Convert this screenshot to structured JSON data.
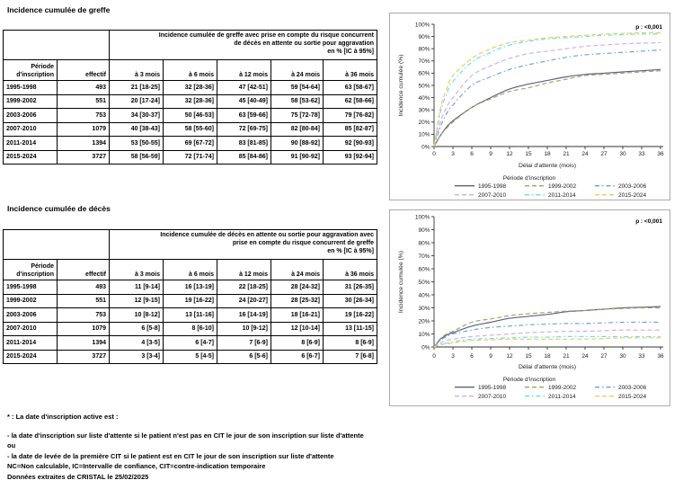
{
  "sections": [
    {
      "title": "Incidence cumulée de greffe",
      "table": {
        "group_header_lines": [
          "Incidence cumulée de greffe avec prise en compte du risque concurrent",
          "de décès en attente ou sortie pour aggravation",
          "en % [IC à 95%]"
        ],
        "columns": [
          "Période d'inscription",
          "effectif",
          "à 3 mois",
          "à 6 mois",
          "à 12 mois",
          "à 24 mois",
          "à 36 mois"
        ],
        "rows": [
          [
            "1995-1998",
            "493",
            "21 [18-25]",
            "32 [28-36]",
            "47 [42-51]",
            "59 [54-64]",
            "63 [58-67]"
          ],
          [
            "1999-2002",
            "551",
            "20 [17-24]",
            "32 [28-36]",
            "45 [40-49]",
            "58 [53-62]",
            "62 [58-66]"
          ],
          [
            "2003-2006",
            "753",
            "34 [30-37]",
            "50 [46-53]",
            "63 [59-66]",
            "75 [72-78]",
            "79 [76-82]"
          ],
          [
            "2007-2010",
            "1079",
            "40 [38-43]",
            "58 [55-60]",
            "72 [69-75]",
            "82 [80-84]",
            "85 [82-87]"
          ],
          [
            "2011-2014",
            "1394",
            "53 [50-55]",
            "69 [67-72]",
            "83 [81-85]",
            "90 [88-92]",
            "92 [90-93]"
          ],
          [
            "2015-2024",
            "3727",
            "58 [56-59]",
            "72 [71-74]",
            "85 [84-86]",
            "91 [90-92]",
            "93 [92-94]"
          ]
        ]
      }
    },
    {
      "title": "Incidence cumulée de décès",
      "table": {
        "group_header_lines": [
          "Incidence cumulée de décès en attente ou sortie pour aggravation avec",
          "prise en compte du risque concurrent de greffe",
          "en % [IC à 95%]"
        ],
        "columns": [
          "Période d'inscription",
          "effectif",
          "à 3 mois",
          "à 6 mois",
          "à 12 mois",
          "à 24 mois",
          "à 36 mois"
        ],
        "rows": [
          [
            "1995-1998",
            "493",
            "11 [9-14]",
            "16 [13-19]",
            "22 [18-25]",
            "28 [24-32]",
            "31 [26-35]"
          ],
          [
            "1999-2002",
            "551",
            "12 [9-15]",
            "19 [16-22]",
            "24 [20-27]",
            "28 [25-32]",
            "30 [26-34]"
          ],
          [
            "2003-2006",
            "753",
            "10 [8-12]",
            "13 [11-16]",
            "16 [14-19]",
            "18 [16-21]",
            "19 [16-22]"
          ],
          [
            "2007-2010",
            "1079",
            "6 [5-8]",
            "8 [6-10]",
            "10 [9-12]",
            "12 [10-14]",
            "13 [11-15]"
          ],
          [
            "2011-2014",
            "1394",
            "4 [3-5]",
            "6 [4-7]",
            "7 [6-9]",
            "8 [6-9]",
            "8 [6-9]"
          ],
          [
            "2015-2024",
            "3727",
            "3 [3-4]",
            "5 [4-5]",
            "6 [5-6]",
            "6 [6-7]",
            "7 [6-8]"
          ]
        ]
      }
    }
  ],
  "footnotes": [
    "* : La date d'inscription active est :",
    "- la date d'inscription sur liste d'attente si le patient n'est pas en CIT le jour de son inscription sur liste d'attente",
    "ou",
    "- la date de levée de la première CIT si le patient est en CIT le jour de son inscription sur liste d'attente",
    "NC=Non calculable, IC=Intervalle de confiance, CIT=contre-indication temporaire",
    "Données extraites de CRISTAL le 25/02/2025"
  ],
  "chart_data": [
    {
      "type": "line",
      "title": "Incidence cumulée de greffe",
      "p_label": "p : <0,001",
      "xlabel": "Délai d'attente (mois)",
      "ylabel": "Incidence cumulée (%)",
      "legend_title": "Période d'inscription",
      "legend_position": "bottom",
      "grid": false,
      "xlim": [
        0,
        36
      ],
      "ylim": [
        0,
        100
      ],
      "x_ticks": [
        0,
        3,
        6,
        9,
        12,
        15,
        18,
        21,
        24,
        27,
        30,
        33,
        36
      ],
      "y_tick_labels": [
        "0%",
        "10%",
        "20%",
        "30%",
        "40%",
        "50%",
        "60%",
        "70%",
        "80%",
        "90%",
        "100%"
      ],
      "x": [
        0,
        1,
        2,
        3,
        6,
        9,
        12,
        15,
        18,
        21,
        24,
        27,
        30,
        33,
        36
      ],
      "series": [
        {
          "name": "1995-1998",
          "color": "#5C6083",
          "dash": "solid",
          "values": [
            0,
            9,
            16,
            21,
            32,
            40,
            47,
            51,
            54,
            57,
            59,
            60,
            61,
            62,
            63
          ]
        },
        {
          "name": "1999-2002",
          "color": "#9DA65F",
          "dash": "dash",
          "values": [
            0,
            9,
            15,
            20,
            32,
            39,
            45,
            48,
            52,
            55,
            58,
            59,
            60,
            61,
            62
          ]
        },
        {
          "name": "2003-2006",
          "color": "#6C9CE8",
          "dash": "dashdot",
          "values": [
            0,
            16,
            27,
            34,
            50,
            57,
            63,
            67,
            70,
            73,
            75,
            76,
            77,
            78,
            79
          ]
        },
        {
          "name": "2007-2010",
          "color": "#CBAEE8",
          "dash": "dash",
          "values": [
            0,
            20,
            32,
            40,
            58,
            66,
            72,
            76,
            78,
            80,
            82,
            83,
            84,
            84.5,
            85
          ]
        },
        {
          "name": "2011-2014",
          "color": "#5FE2EA",
          "dash": "dashdot",
          "values": [
            0,
            28,
            43,
            53,
            69,
            77,
            83,
            86,
            88,
            89,
            90,
            91,
            91.5,
            92,
            92
          ]
        },
        {
          "name": "2015-2024",
          "color": "#EFCA5A",
          "dash": "dash",
          "values": [
            0,
            31,
            47,
            58,
            72,
            80,
            85,
            87,
            89,
            90,
            91,
            92,
            92.5,
            93,
            93
          ]
        }
      ]
    },
    {
      "type": "line",
      "title": "Incidence cumulée de décès",
      "p_label": "p : <0,001",
      "xlabel": "Délai d'attente (mois)",
      "ylabel": "Incidence cumulée (%)",
      "legend_title": "Période d'inscription",
      "legend_position": "bottom",
      "grid": false,
      "xlim": [
        0,
        36
      ],
      "ylim": [
        0,
        100
      ],
      "x_ticks": [
        0,
        3,
        6,
        9,
        12,
        15,
        18,
        21,
        24,
        27,
        30,
        33,
        36
      ],
      "y_tick_labels": [
        "0%",
        "10%",
        "20%",
        "30%",
        "40%",
        "50%",
        "60%",
        "70%",
        "80%",
        "90%",
        "100%"
      ],
      "x": [
        0,
        1,
        2,
        3,
        6,
        9,
        12,
        15,
        18,
        21,
        24,
        27,
        30,
        33,
        36
      ],
      "series": [
        {
          "name": "1995-1998",
          "color": "#5C6083",
          "dash": "solid",
          "values": [
            0,
            6,
            9,
            11,
            16,
            19,
            22,
            23.5,
            25,
            27,
            28,
            29,
            30,
            30.5,
            31
          ]
        },
        {
          "name": "1999-2002",
          "color": "#9DA65F",
          "dash": "dash",
          "values": [
            0,
            6.5,
            10,
            12,
            19,
            21.5,
            24,
            25.5,
            26.5,
            27.5,
            28,
            29,
            29.5,
            30,
            30
          ]
        },
        {
          "name": "2003-2006",
          "color": "#6C9CE8",
          "dash": "dashdot",
          "values": [
            0,
            5,
            8,
            10,
            13,
            15,
            16,
            17,
            17.5,
            18,
            18,
            18.5,
            19,
            19,
            19
          ]
        },
        {
          "name": "2007-2010",
          "color": "#CBAEE8",
          "dash": "dash",
          "values": [
            0,
            3,
            5,
            6,
            8,
            9,
            10,
            11,
            11.5,
            12,
            12,
            12.5,
            13,
            13,
            13
          ]
        },
        {
          "name": "2011-2014",
          "color": "#5FE2EA",
          "dash": "dashdot",
          "values": [
            0,
            2,
            3,
            4,
            6,
            6.5,
            7,
            7.5,
            7.5,
            8,
            8,
            8,
            8,
            8,
            8
          ]
        },
        {
          "name": "2015-2024",
          "color": "#EFCA5A",
          "dash": "dash",
          "values": [
            0,
            1.5,
            2.5,
            3,
            5,
            5.5,
            6,
            6,
            6,
            6,
            6,
            6.5,
            7,
            7,
            7
          ]
        }
      ]
    }
  ]
}
